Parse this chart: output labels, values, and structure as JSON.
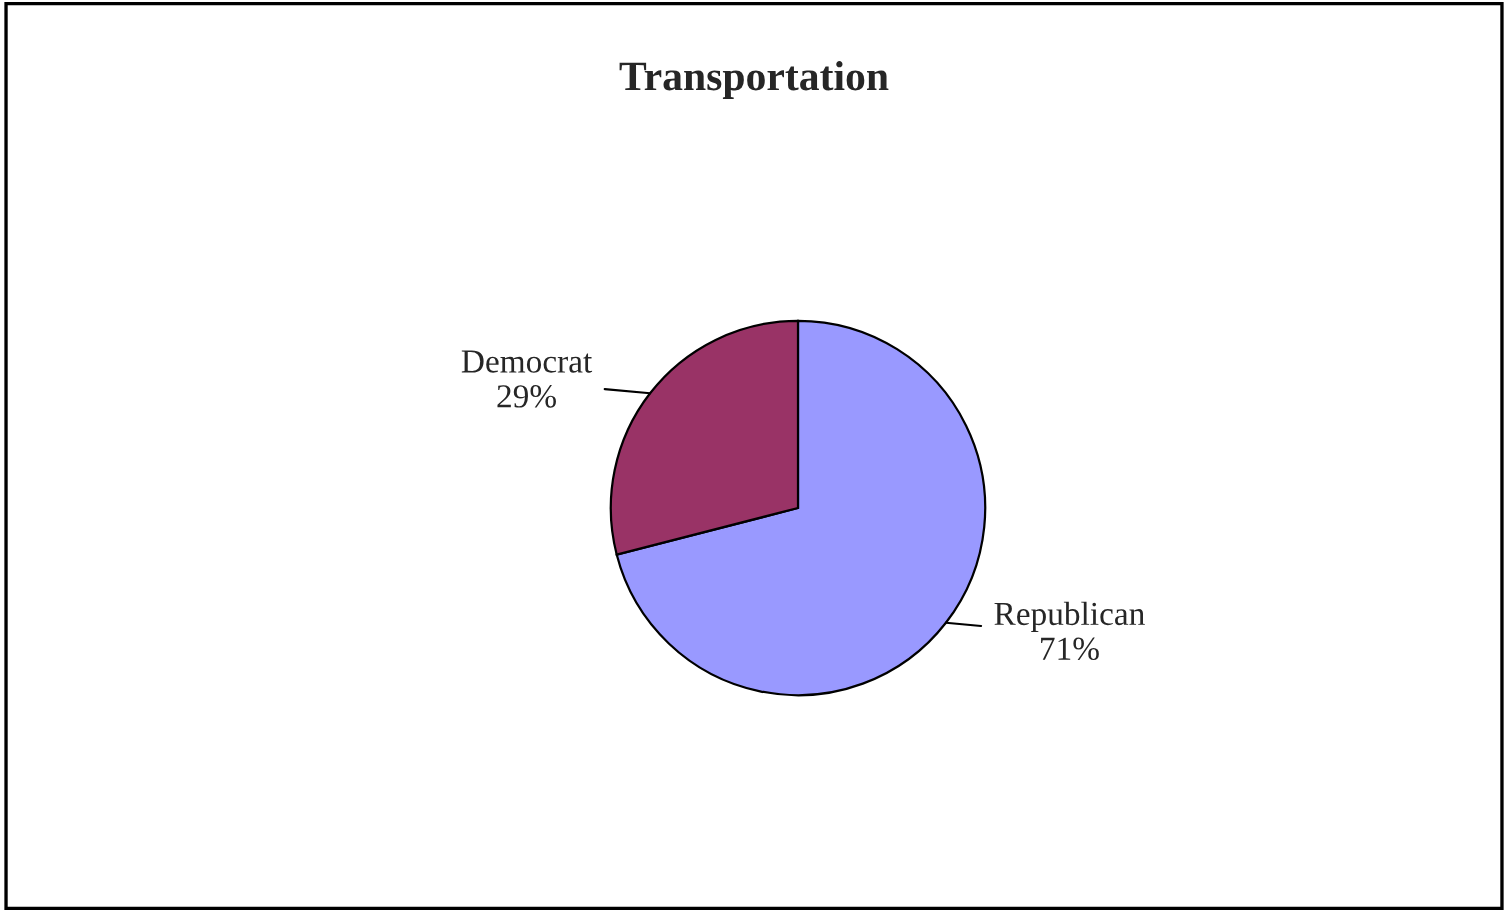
{
  "chart_data": {
    "type": "pie",
    "title": "Transportation",
    "categories": [
      "Republican",
      "Democrat"
    ],
    "values": [
      71,
      29
    ],
    "value_labels": [
      "71%",
      "29%"
    ],
    "colors": [
      "#9999ff",
      "#993366"
    ]
  }
}
